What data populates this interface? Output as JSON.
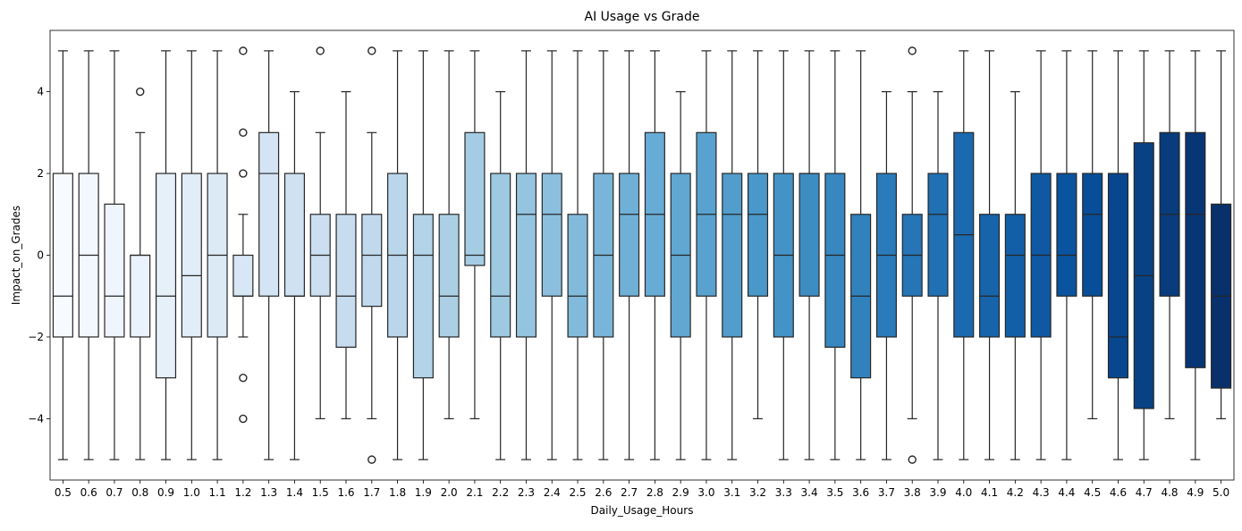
{
  "chart_data": {
    "type": "boxplot",
    "title": "AI Usage vs Grade",
    "xlabel": "Daily_Usage_Hours",
    "ylabel": "Impact_on_Grades",
    "ylim": [
      -5.5,
      5.5
    ],
    "yticks": [
      -4,
      -2,
      0,
      2,
      4
    ],
    "grid": false,
    "colormap": "Blues",
    "categories": [
      "0.5",
      "0.6",
      "0.7",
      "0.8",
      "0.9",
      "1.0",
      "1.1",
      "1.2",
      "1.3",
      "1.4",
      "1.5",
      "1.6",
      "1.7",
      "1.8",
      "1.9",
      "2.0",
      "2.1",
      "2.2",
      "2.3",
      "2.4",
      "2.5",
      "2.6",
      "2.7",
      "2.8",
      "2.9",
      "3.0",
      "3.1",
      "3.2",
      "3.3",
      "3.4",
      "3.5",
      "3.6",
      "3.7",
      "3.8",
      "3.9",
      "4.0",
      "4.1",
      "4.2",
      "4.3",
      "4.4",
      "4.5",
      "4.6",
      "4.7",
      "4.8",
      "4.9",
      "5.0"
    ],
    "boxes": [
      {
        "whislo": -5,
        "q1": -2,
        "med": -1,
        "q3": 2,
        "whishi": 5,
        "fliers": []
      },
      {
        "whislo": -5,
        "q1": -2,
        "med": 0,
        "q3": 2,
        "whishi": 5,
        "fliers": []
      },
      {
        "whislo": -5,
        "q1": -2,
        "med": -1,
        "q3": 1.25,
        "whishi": 5,
        "fliers": []
      },
      {
        "whislo": -5,
        "q1": -2,
        "med": 0,
        "q3": 0,
        "whishi": 3,
        "fliers": [
          4
        ]
      },
      {
        "whislo": -5,
        "q1": -3,
        "med": -1,
        "q3": 2,
        "whishi": 5,
        "fliers": []
      },
      {
        "whislo": -5,
        "q1": -2,
        "med": -0.5,
        "q3": 2,
        "whishi": 5,
        "fliers": []
      },
      {
        "whislo": -5,
        "q1": -2,
        "med": 0,
        "q3": 2,
        "whishi": 5,
        "fliers": []
      },
      {
        "whislo": -2,
        "q1": -1,
        "med": -1,
        "q3": 0,
        "whishi": 1,
        "fliers": [
          5,
          3,
          2,
          -3,
          -4
        ]
      },
      {
        "whislo": -5,
        "q1": -1,
        "med": 2,
        "q3": 3,
        "whishi": 5,
        "fliers": []
      },
      {
        "whislo": -5,
        "q1": -1,
        "med": -1,
        "q3": 2,
        "whishi": 4,
        "fliers": []
      },
      {
        "whislo": -4,
        "q1": -1,
        "med": 0,
        "q3": 1,
        "whishi": 3,
        "fliers": [
          5
        ]
      },
      {
        "whislo": -4,
        "q1": -2.25,
        "med": -1,
        "q3": 1,
        "whishi": 4,
        "fliers": []
      },
      {
        "whislo": -4,
        "q1": -1.25,
        "med": 0,
        "q3": 1,
        "whishi": 3,
        "fliers": [
          5,
          -5
        ]
      },
      {
        "whislo": -5,
        "q1": -2,
        "med": 0,
        "q3": 2,
        "whishi": 5,
        "fliers": []
      },
      {
        "whislo": -5,
        "q1": -3,
        "med": 0,
        "q3": 1,
        "whishi": 5,
        "fliers": []
      },
      {
        "whislo": -4,
        "q1": -2,
        "med": -1,
        "q3": 1,
        "whishi": 5,
        "fliers": []
      },
      {
        "whislo": -4,
        "q1": -0.25,
        "med": 0,
        "q3": 3,
        "whishi": 5,
        "fliers": []
      },
      {
        "whislo": -5,
        "q1": -2,
        "med": -1,
        "q3": 2,
        "whishi": 4,
        "fliers": []
      },
      {
        "whislo": -5,
        "q1": -2,
        "med": 1,
        "q3": 2,
        "whishi": 5,
        "fliers": []
      },
      {
        "whislo": -5,
        "q1": -1,
        "med": 1,
        "q3": 2,
        "whishi": 5,
        "fliers": []
      },
      {
        "whislo": -5,
        "q1": -2,
        "med": -1,
        "q3": 1,
        "whishi": 5,
        "fliers": []
      },
      {
        "whislo": -5,
        "q1": -2,
        "med": 0,
        "q3": 2,
        "whishi": 5,
        "fliers": []
      },
      {
        "whislo": -5,
        "q1": -1,
        "med": 1,
        "q3": 2,
        "whishi": 5,
        "fliers": []
      },
      {
        "whislo": -5,
        "q1": -1,
        "med": 1,
        "q3": 3,
        "whishi": 5,
        "fliers": []
      },
      {
        "whislo": -5,
        "q1": -2,
        "med": 0,
        "q3": 2,
        "whishi": 4,
        "fliers": []
      },
      {
        "whislo": -5,
        "q1": -1,
        "med": 1,
        "q3": 3,
        "whishi": 5,
        "fliers": []
      },
      {
        "whislo": -5,
        "q1": -2,
        "med": 1,
        "q3": 2,
        "whishi": 5,
        "fliers": []
      },
      {
        "whislo": -4,
        "q1": -1,
        "med": 1,
        "q3": 2,
        "whishi": 5,
        "fliers": []
      },
      {
        "whislo": -5,
        "q1": -2,
        "med": 0,
        "q3": 2,
        "whishi": 5,
        "fliers": []
      },
      {
        "whislo": -5,
        "q1": -1,
        "med": 2,
        "q3": 2,
        "whishi": 5,
        "fliers": []
      },
      {
        "whislo": -5,
        "q1": -2.25,
        "med": 0,
        "q3": 2,
        "whishi": 5,
        "fliers": []
      },
      {
        "whislo": -5,
        "q1": -3,
        "med": -1,
        "q3": 1,
        "whishi": 5,
        "fliers": []
      },
      {
        "whislo": -5,
        "q1": -2,
        "med": 0,
        "q3": 2,
        "whishi": 4,
        "fliers": []
      },
      {
        "whislo": -4,
        "q1": -1,
        "med": 0,
        "q3": 1,
        "whishi": 4,
        "fliers": [
          5,
          -5
        ]
      },
      {
        "whislo": -5,
        "q1": -1,
        "med": 1,
        "q3": 2,
        "whishi": 4,
        "fliers": []
      },
      {
        "whislo": -5,
        "q1": -2,
        "med": 0.5,
        "q3": 3,
        "whishi": 5,
        "fliers": []
      },
      {
        "whislo": -5,
        "q1": -2,
        "med": -1,
        "q3": 1,
        "whishi": 5,
        "fliers": []
      },
      {
        "whislo": -5,
        "q1": -2,
        "med": 0,
        "q3": 1,
        "whishi": 4,
        "fliers": []
      },
      {
        "whislo": -5,
        "q1": -2,
        "med": 0,
        "q3": 2,
        "whishi": 5,
        "fliers": []
      },
      {
        "whislo": -5,
        "q1": -1,
        "med": 0,
        "q3": 2,
        "whishi": 5,
        "fliers": []
      },
      {
        "whislo": -4,
        "q1": -1,
        "med": 1,
        "q3": 2,
        "whishi": 5,
        "fliers": []
      },
      {
        "whislo": -5,
        "q1": -3,
        "med": -2,
        "q3": 2,
        "whishi": 5,
        "fliers": []
      },
      {
        "whislo": -5,
        "q1": -3.75,
        "med": -0.5,
        "q3": 2.75,
        "whishi": 5,
        "fliers": []
      },
      {
        "whislo": -4,
        "q1": -1,
        "med": 1,
        "q3": 3,
        "whishi": 5,
        "fliers": []
      },
      {
        "whislo": -5,
        "q1": -2.75,
        "med": 1,
        "q3": 3,
        "whishi": 5,
        "fliers": []
      },
      {
        "whislo": -4,
        "q1": -3.25,
        "med": -1,
        "q3": 1.25,
        "whishi": 5,
        "fliers": []
      }
    ]
  }
}
